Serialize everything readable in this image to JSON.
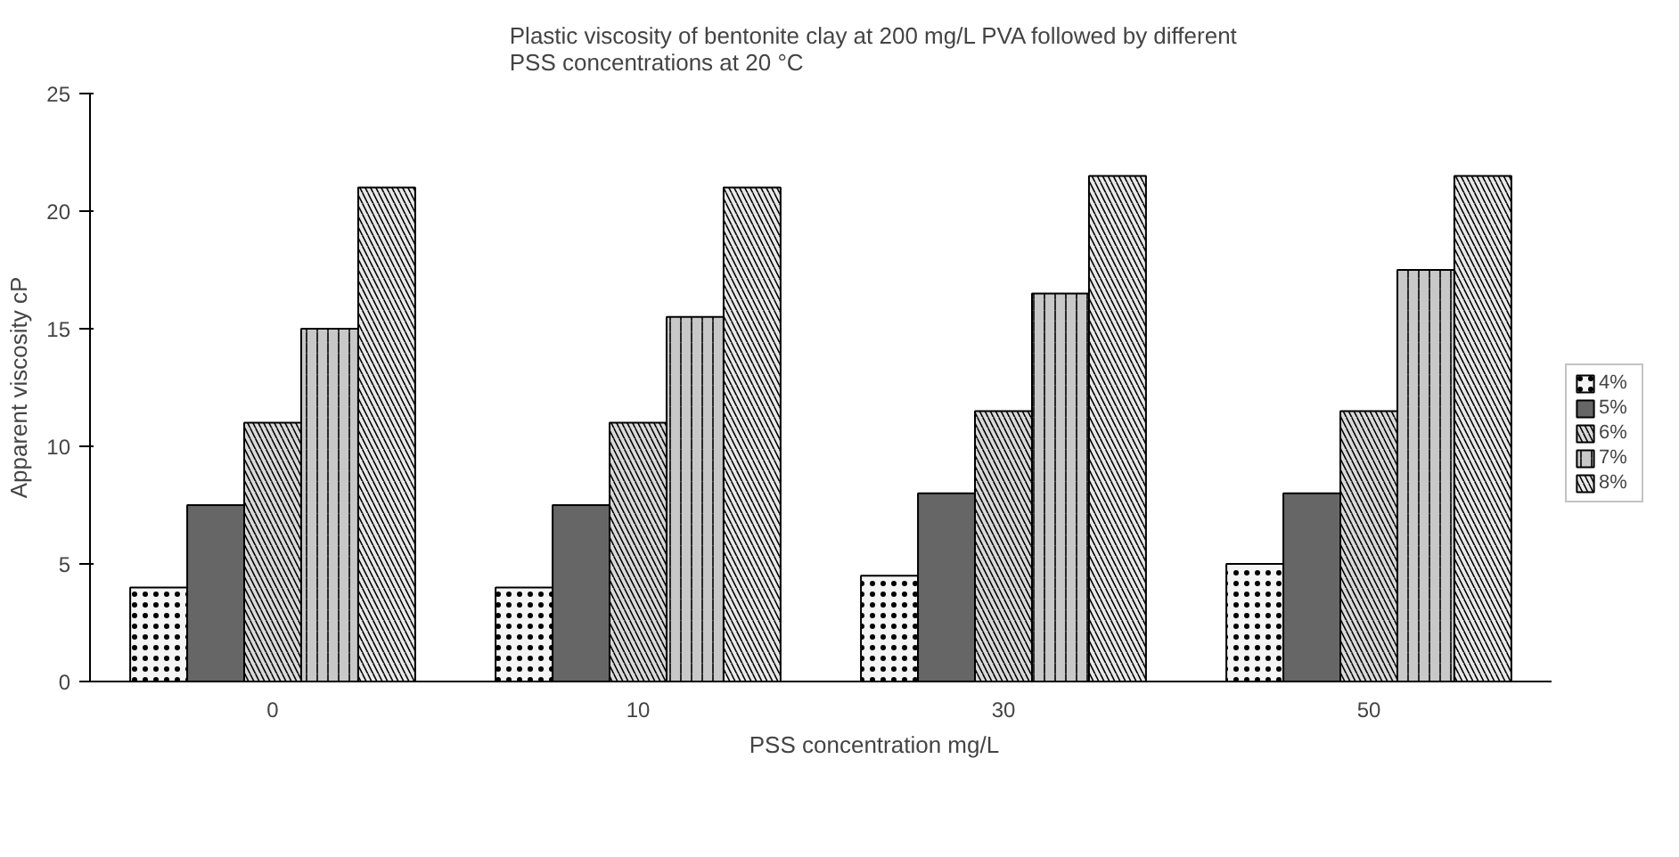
{
  "chart_data": {
    "type": "bar",
    "title": "Plastic viscosity of bentonite clay at 200 mg/L PVA followed by different\nPSS concentrations at 20 °C",
    "xlabel": "PSS concentration mg/L",
    "ylabel": "Apparent viscosity cP",
    "categories": [
      "0",
      "10",
      "30",
      "50"
    ],
    "ylim": [
      0,
      25
    ],
    "yticks": [
      0,
      5,
      10,
      15,
      20,
      25
    ],
    "grid": false,
    "legend": "right",
    "series": [
      {
        "name": "4%",
        "color": "#f4f4f4",
        "values": [
          4,
          4,
          4.5,
          5
        ]
      },
      {
        "name": "5%",
        "color": "#666666",
        "values": [
          7.5,
          7.5,
          8,
          8
        ]
      },
      {
        "name": "6%",
        "color": "#d9d9d9",
        "values": [
          11,
          11,
          11.5,
          11.5
        ]
      },
      {
        "name": "7%",
        "color": "#c8c8c8",
        "values": [
          15,
          15.5,
          16.5,
          17.5
        ]
      },
      {
        "name": "8%",
        "color": "#e8e8e8",
        "values": [
          21,
          21,
          21.5,
          21.5
        ]
      }
    ]
  }
}
